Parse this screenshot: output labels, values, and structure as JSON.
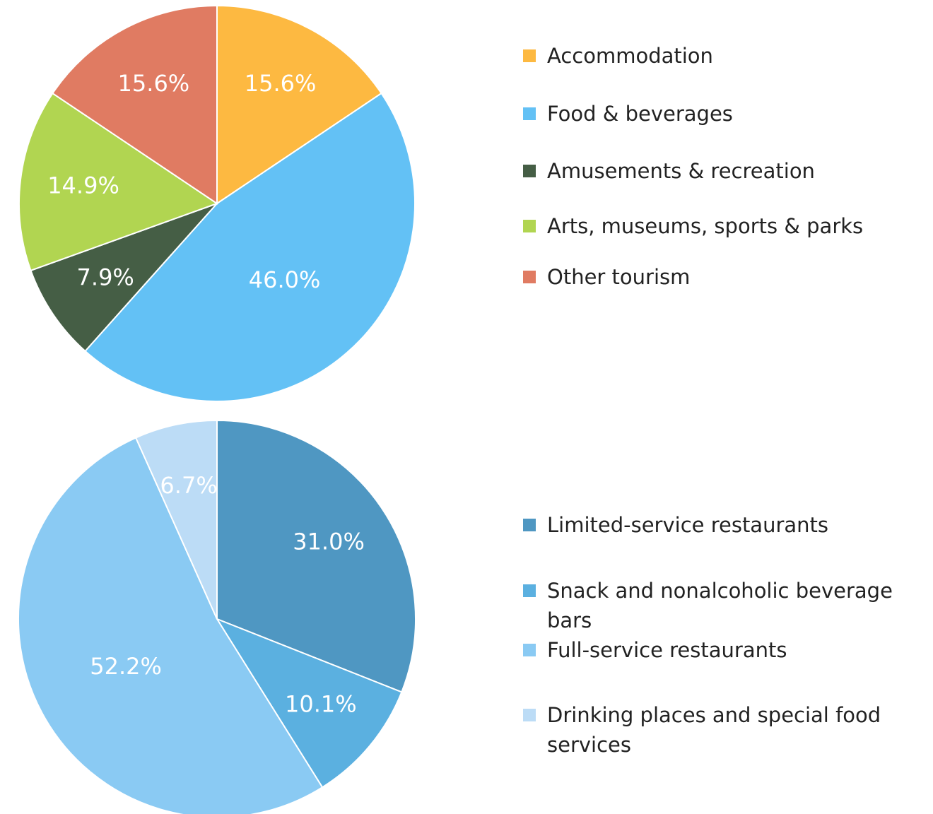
{
  "chart_data": [
    {
      "type": "pie",
      "categories": [
        "Accommodation",
        "Food & beverages",
        "Amusements & recreation",
        "Arts, museums, sports & parks",
        "Other tourism"
      ],
      "values": [
        15.6,
        46.0,
        7.9,
        14.9,
        15.6
      ],
      "value_labels": [
        "15.6%",
        "46.0%",
        "7.9%",
        "14.9%",
        "15.6%"
      ],
      "colors": [
        "#fdb941",
        "#63c1f5",
        "#455e45",
        "#b1d551",
        "#e07b62"
      ]
    },
    {
      "type": "pie",
      "categories": [
        "Limited-service restaurants",
        "Snack and nonalcoholic beverage bars",
        "Full-service restaurants",
        "Drinking places and special food services"
      ],
      "values": [
        31.0,
        10.1,
        52.2,
        6.7
      ],
      "value_labels": [
        "31.0%",
        "10.1%",
        "52.2%",
        "6.7%"
      ],
      "colors": [
        "#4f97c2",
        "#5bb0e0",
        "#8acaf3",
        "#bcdcf6"
      ]
    }
  ]
}
